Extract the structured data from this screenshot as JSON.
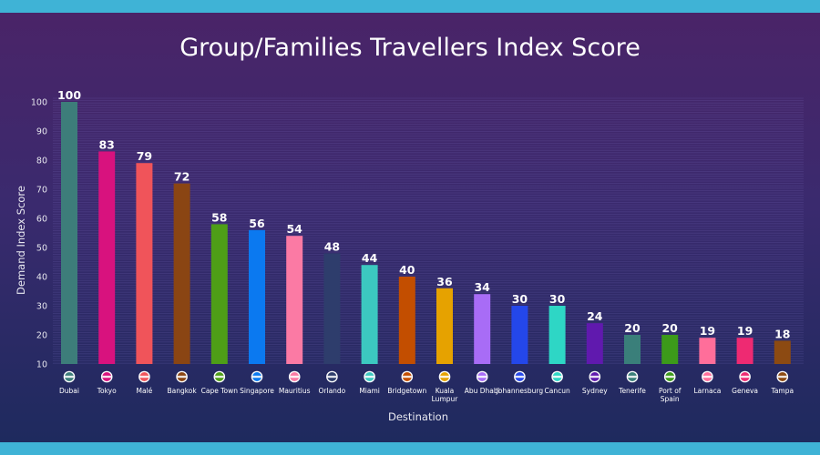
{
  "chart_data": {
    "type": "bar",
    "title": "Group/Families Travellers Index Score",
    "xlabel": "Destination",
    "ylabel": "Demand Index Score",
    "ylim": [
      10,
      100
    ],
    "yticks": [
      100,
      90,
      80,
      70,
      60,
      50,
      40,
      30,
      20,
      10
    ],
    "grid": true,
    "categories": [
      "Dubai",
      "Tokyo",
      "Malé",
      "Bangkok",
      "Cape Town",
      "Singapore",
      "Mauritius",
      "Orlando",
      "Miami",
      "Bridgetown",
      "Kuala Lumpur",
      "Abu Dhabi",
      "Johannesburg",
      "Cancun",
      "Sydney",
      "Tenerife",
      "Port of Spain",
      "Larnaca",
      "Geneva",
      "Tampa"
    ],
    "values": [
      100,
      83,
      79,
      72,
      58,
      56,
      54,
      48,
      44,
      40,
      36,
      34,
      30,
      30,
      24,
      20,
      20,
      19,
      19,
      18
    ],
    "colors": [
      "#3d7d7a",
      "#d8127e",
      "#f0545a",
      "#8a4513",
      "#4e9e17",
      "#0b79f0",
      "#fb7aa4",
      "#2e3d6c",
      "#3cc8c0",
      "#c34e00",
      "#e6a200",
      "#a86cf6",
      "#2447ea",
      "#2ed6c5",
      "#6019ae",
      "#3a7f7a",
      "#3c9a1a",
      "#ff6e9a",
      "#ee2a72",
      "#8c4a12"
    ],
    "flags": [
      "uae-flag-icon",
      "japan-flag-icon",
      "maldives-flag-icon",
      "australia-flag-icon",
      "south-africa-flag-icon",
      "singapore-flag-icon",
      "mauritius-flag-icon",
      "orlando-flag-icon",
      "usa-flag-icon",
      "barbados-flag-icon",
      "malaysia-flag-icon",
      "uae-flag-icon",
      "south-africa-flag-icon",
      "mexico-flag-icon",
      "australia-flag-icon",
      "tenerife-flag-icon",
      "trinidad-flag-icon",
      "cyprus-flag-icon",
      "switzerland-flag-icon",
      "tampa-flag-icon"
    ]
  }
}
